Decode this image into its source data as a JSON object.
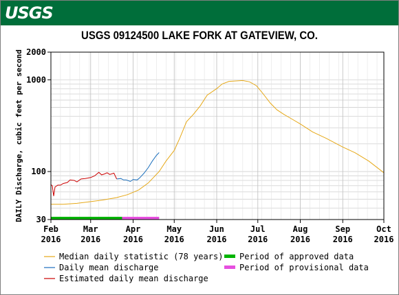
{
  "header": {
    "logo_text": "USGS",
    "brand_color": "#006e3a"
  },
  "chart_data": {
    "type": "line",
    "title": "USGS 09124500 LAKE FORK AT GATEVIEW, CO.",
    "ylabel": "DAILY Discharge, cubic feet per second",
    "xlabel": "",
    "yscale": "log",
    "ylim": [
      30,
      2000
    ],
    "y_ticks": [
      30,
      100,
      1000,
      2000
    ],
    "xlim": [
      "2016-02-01",
      "2016-10-01"
    ],
    "x_ticks": [
      {
        "date": "2016-02-01",
        "month": "Feb",
        "year": "2016"
      },
      {
        "date": "2016-03-01",
        "month": "Mar",
        "year": "2016"
      },
      {
        "date": "2016-04-01",
        "month": "Apr",
        "year": "2016"
      },
      {
        "date": "2016-05-01",
        "month": "May",
        "year": "2016"
      },
      {
        "date": "2016-06-01",
        "month": "Jun",
        "year": "2016"
      },
      {
        "date": "2016-07-01",
        "month": "Jul",
        "year": "2016"
      },
      {
        "date": "2016-08-01",
        "month": "Aug",
        "year": "2016"
      },
      {
        "date": "2016-09-01",
        "month": "Sep",
        "year": "2016"
      },
      {
        "date": "2016-10-01",
        "month": "Oct",
        "year": "2016"
      }
    ],
    "grid": true,
    "series": [
      {
        "name": "Median daily statistic (78 years)",
        "color": "#e6a817",
        "points": [
          [
            "2016-02-01",
            44
          ],
          [
            "2016-02-10",
            44
          ],
          [
            "2016-02-20",
            45
          ],
          [
            "2016-03-01",
            47
          ],
          [
            "2016-03-10",
            49
          ],
          [
            "2016-03-20",
            52
          ],
          [
            "2016-03-28",
            56
          ],
          [
            "2016-04-05",
            63
          ],
          [
            "2016-04-12",
            75
          ],
          [
            "2016-04-20",
            100
          ],
          [
            "2016-04-25",
            130
          ],
          [
            "2016-05-01",
            170
          ],
          [
            "2016-05-05",
            230
          ],
          [
            "2016-05-10",
            350
          ],
          [
            "2016-05-15",
            420
          ],
          [
            "2016-05-20",
            520
          ],
          [
            "2016-05-25",
            680
          ],
          [
            "2016-06-01",
            800
          ],
          [
            "2016-06-05",
            900
          ],
          [
            "2016-06-10",
            960
          ],
          [
            "2016-06-15",
            970
          ],
          [
            "2016-06-20",
            980
          ],
          [
            "2016-06-25",
            950
          ],
          [
            "2016-06-30",
            860
          ],
          [
            "2016-07-05",
            700
          ],
          [
            "2016-07-10",
            560
          ],
          [
            "2016-07-15",
            470
          ],
          [
            "2016-07-20",
            420
          ],
          [
            "2016-07-25",
            380
          ],
          [
            "2016-08-01",
            330
          ],
          [
            "2016-08-10",
            270
          ],
          [
            "2016-08-20",
            230
          ],
          [
            "2016-09-01",
            185
          ],
          [
            "2016-09-10",
            160
          ],
          [
            "2016-09-20",
            130
          ],
          [
            "2016-10-01",
            97
          ]
        ]
      },
      {
        "name": "Daily mean discharge",
        "color": "#1b6fbd",
        "points": [
          [
            "2016-03-20",
            83
          ],
          [
            "2016-03-23",
            84
          ],
          [
            "2016-03-25",
            81
          ],
          [
            "2016-03-27",
            81
          ],
          [
            "2016-03-30",
            78
          ],
          [
            "2016-04-01",
            82
          ],
          [
            "2016-04-04",
            81
          ],
          [
            "2016-04-06",
            86
          ],
          [
            "2016-04-09",
            96
          ],
          [
            "2016-04-12",
            110
          ],
          [
            "2016-04-15",
            130
          ],
          [
            "2016-04-18",
            150
          ],
          [
            "2016-04-20",
            161
          ]
        ]
      },
      {
        "name": "Estimated daily mean discharge",
        "color": "#cc0000",
        "points": [
          [
            "2016-02-01",
            72
          ],
          [
            "2016-02-02",
            70
          ],
          [
            "2016-02-03",
            54
          ],
          [
            "2016-02-04",
            68
          ],
          [
            "2016-02-06",
            71
          ],
          [
            "2016-02-08",
            71
          ],
          [
            "2016-02-10",
            74
          ],
          [
            "2016-02-13",
            76
          ],
          [
            "2016-02-15",
            81
          ],
          [
            "2016-02-18",
            80
          ],
          [
            "2016-02-20",
            77
          ],
          [
            "2016-02-23",
            83
          ],
          [
            "2016-02-26",
            84
          ],
          [
            "2016-03-01",
            86
          ],
          [
            "2016-03-04",
            90
          ],
          [
            "2016-03-07",
            98
          ],
          [
            "2016-03-09",
            92
          ],
          [
            "2016-03-11",
            94
          ],
          [
            "2016-03-13",
            97
          ],
          [
            "2016-03-15",
            93
          ],
          [
            "2016-03-18",
            96
          ],
          [
            "2016-03-20",
            83
          ]
        ]
      }
    ],
    "periods": [
      {
        "name": "Period of approved data",
        "color": "#00b400",
        "start": "2016-02-01",
        "end": "2016-03-24"
      },
      {
        "name": "Period of provisional data",
        "color": "#e64fdf",
        "start": "2016-03-24",
        "end": "2016-04-20"
      }
    ],
    "legend": {
      "placement": "bottom",
      "items": [
        {
          "label": "Median daily statistic (78 years)",
          "color": "#e6a817",
          "kind": "line"
        },
        {
          "label": "Daily mean discharge",
          "color": "#1b6fbd",
          "kind": "line"
        },
        {
          "label": "Estimated daily mean discharge",
          "color": "#cc0000",
          "kind": "line"
        },
        {
          "label": "Period of approved data",
          "color": "#00b400",
          "kind": "bar"
        },
        {
          "label": "Period of provisional data",
          "color": "#e64fdf",
          "kind": "bar"
        }
      ]
    }
  }
}
